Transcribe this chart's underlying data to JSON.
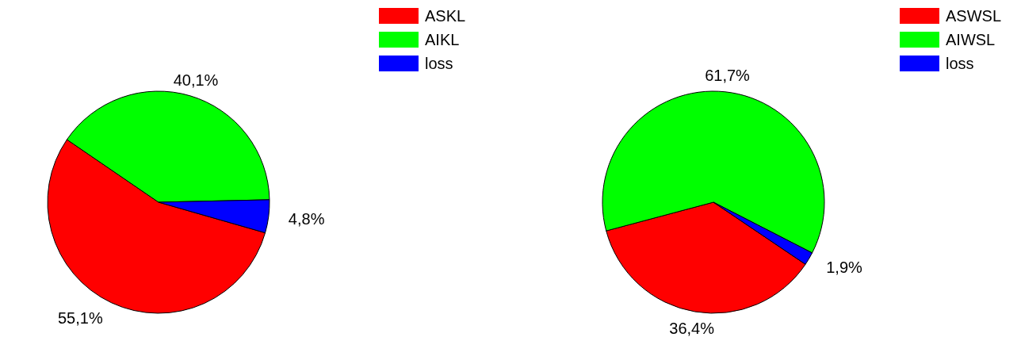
{
  "chart_data": [
    {
      "type": "pie",
      "categories": [
        "ASKL",
        "AIKL",
        "loss"
      ],
      "values": [
        55.1,
        40.1,
        4.8
      ],
      "colors": [
        "#ff0000",
        "#00ff00",
        "#0000ff"
      ],
      "value_labels": [
        "55,1%",
        "40,1%",
        "4,8%"
      ],
      "legend": "top right"
    },
    {
      "type": "pie",
      "categories": [
        "ASWSL",
        "AIWSL",
        "loss"
      ],
      "values": [
        36.4,
        61.7,
        1.9
      ],
      "colors": [
        "#ff0000",
        "#00ff00",
        "#0000ff"
      ],
      "value_labels": [
        "36,4%",
        "61,7%",
        "1,9%"
      ],
      "legend": "top right"
    }
  ]
}
